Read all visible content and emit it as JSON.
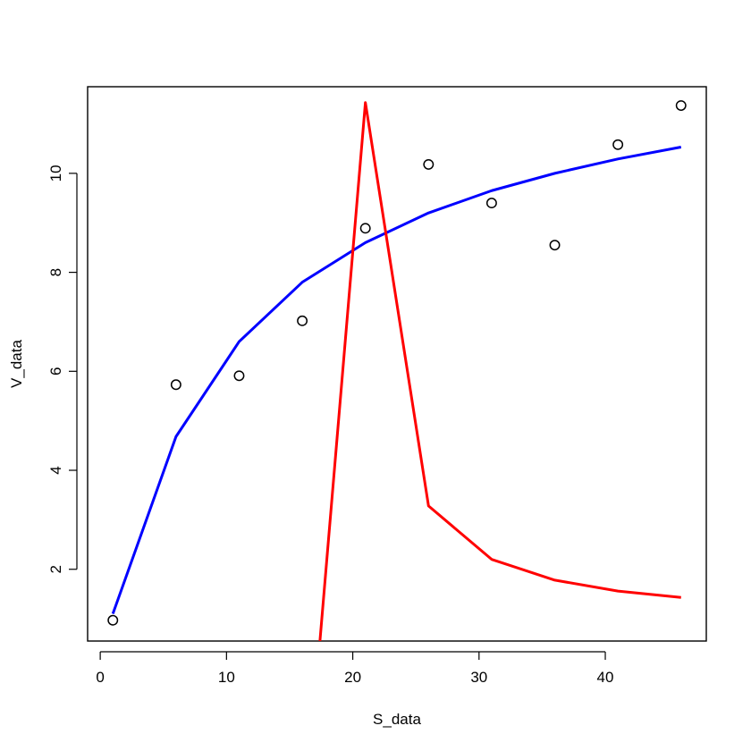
{
  "chart_data": {
    "type": "scatter",
    "title": "",
    "xlabel": "S_data",
    "ylabel": "V_data",
    "xlim": [
      -1.0,
      48.0
    ],
    "ylim": [
      0.55,
      11.75
    ],
    "xticks": [
      0,
      10,
      20,
      30,
      40
    ],
    "yticks": [
      2,
      4,
      6,
      8,
      10
    ],
    "grid": false,
    "series": [
      {
        "kind": "points",
        "color": "#000000",
        "x": [
          1,
          6,
          11,
          16,
          21,
          26,
          31,
          36,
          41,
          46
        ],
        "y": [
          0.97,
          5.73,
          5.91,
          7.02,
          8.89,
          10.18,
          9.4,
          8.55,
          10.58,
          11.37
        ]
      },
      {
        "kind": "line",
        "color": "#0000ff",
        "x": [
          1,
          6,
          11,
          16,
          21,
          26,
          31,
          36,
          41,
          46
        ],
        "y": [
          1.1,
          4.68,
          6.6,
          7.8,
          8.6,
          9.2,
          9.65,
          10.0,
          10.29,
          10.53
        ]
      },
      {
        "kind": "line",
        "color": "#ff0000",
        "x": [
          17.4,
          21,
          26,
          31,
          36,
          41,
          46
        ],
        "y": [
          0.55,
          11.43,
          3.28,
          2.2,
          1.78,
          1.56,
          1.43
        ]
      }
    ]
  }
}
